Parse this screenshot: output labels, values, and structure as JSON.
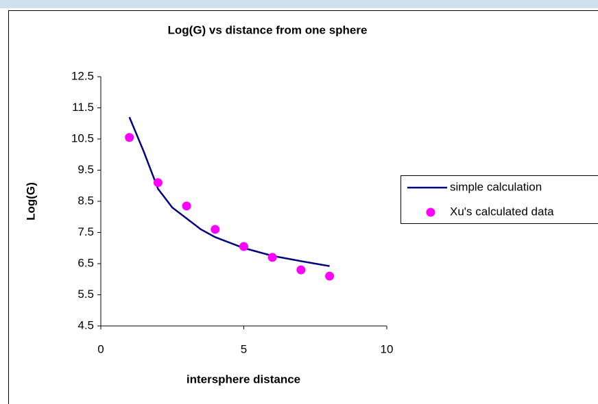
{
  "chart_data": {
    "type": "line",
    "title": "Log(G) vs distance from one sphere",
    "xlabel": "intersphere distance",
    "ylabel": "Log(G)",
    "xlim": [
      0,
      10
    ],
    "xticks": [
      0,
      5,
      10
    ],
    "ylim": [
      4.5,
      12.5
    ],
    "yticks": [
      4.5,
      5.5,
      6.5,
      7.5,
      8.5,
      9.5,
      10.5,
      11.5,
      12.5
    ],
    "grid": false,
    "legend": "right",
    "series": [
      {
        "name": "simple calculation",
        "style": "line",
        "color": "#000080",
        "x": [
          1,
          1.5,
          2,
          2.5,
          3,
          3.5,
          4,
          5,
          6,
          7,
          8
        ],
        "values": [
          11.2,
          10.1,
          8.9,
          8.3,
          7.95,
          7.6,
          7.35,
          7.0,
          6.75,
          6.58,
          6.42
        ]
      },
      {
        "name": "Xu's calculated data",
        "style": "scatter",
        "color": "#ff00ff",
        "x": [
          1,
          2,
          3,
          4,
          5,
          6,
          7,
          8
        ],
        "values": [
          10.55,
          9.1,
          8.35,
          7.6,
          7.05,
          6.7,
          6.3,
          6.1
        ]
      }
    ]
  }
}
